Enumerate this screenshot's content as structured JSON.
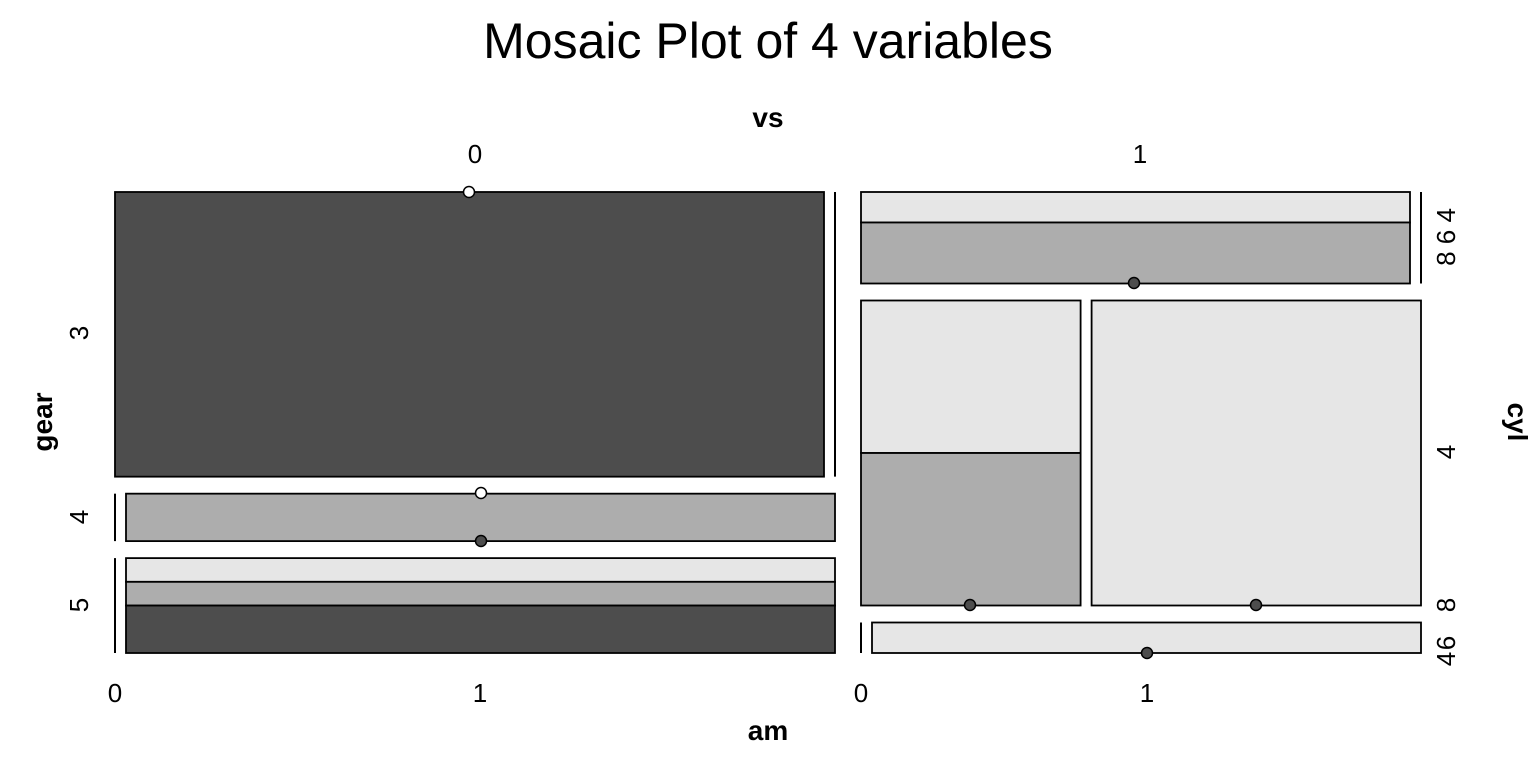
{
  "chart_data": {
    "type": "mosaic",
    "title": "Mosaic Plot of 4 variables",
    "variables": {
      "top": "vs",
      "bottom": "am",
      "left": "gear",
      "right": "cyl"
    },
    "colors": {
      "cyl_4": "#e6e6e6",
      "cyl_6": "#adadad",
      "cyl_8": "#4d4d4d",
      "zero_dot_empty": "#ffffff",
      "zero_dot_filled": "#4d4d4d"
    },
    "vs_levels": [
      {
        "vs": "0",
        "am_levels": [
          "0",
          "1"
        ],
        "gear_levels": [
          "3",
          "4",
          "5"
        ],
        "cyl_levels": []
      },
      {
        "vs": "1",
        "am_levels": [
          "0",
          "1"
        ],
        "gear_levels": [],
        "cyl_levels": [
          {
            "label": "8 6 4",
            "gear": "3"
          },
          {
            "label": "4",
            "gear": "4"
          },
          {
            "label": "8",
            "gear": "5"
          },
          {
            "label": "6",
            "gear": "5"
          },
          {
            "label": "4",
            "gear": "5"
          }
        ]
      }
    ],
    "counts": [
      {
        "vs": "0",
        "am": "0",
        "gear": "3",
        "cyl": {
          "4": 0,
          "6": 0,
          "8": 12
        }
      },
      {
        "vs": "0",
        "am": "1",
        "gear": "3",
        "cyl": {
          "4": 0,
          "6": 0,
          "8": 0
        }
      },
      {
        "vs": "0",
        "am": "0",
        "gear": "4",
        "cyl": {
          "4": 0,
          "6": 0,
          "8": 0
        }
      },
      {
        "vs": "0",
        "am": "1",
        "gear": "4",
        "cyl": {
          "4": 0,
          "6": 2,
          "8": 0
        }
      },
      {
        "vs": "0",
        "am": "0",
        "gear": "5",
        "cyl": {
          "4": 0,
          "6": 0,
          "8": 0
        }
      },
      {
        "vs": "0",
        "am": "1",
        "gear": "5",
        "cyl": {
          "4": 1,
          "6": 1,
          "8": 2
        }
      },
      {
        "vs": "1",
        "am": "0",
        "gear": "3",
        "cyl": {
          "4": 1,
          "6": 2,
          "8": 0
        }
      },
      {
        "vs": "1",
        "am": "1",
        "gear": "3",
        "cyl": {
          "4": 0,
          "6": 0,
          "8": 0
        }
      },
      {
        "vs": "1",
        "am": "0",
        "gear": "4",
        "cyl": {
          "4": 2,
          "6": 2,
          "8": 0
        }
      },
      {
        "vs": "1",
        "am": "1",
        "gear": "4",
        "cyl": {
          "4": 6,
          "6": 0,
          "8": 0
        }
      },
      {
        "vs": "1",
        "am": "0",
        "gear": "5",
        "cyl": {
          "4": 0,
          "6": 0,
          "8": 0
        }
      },
      {
        "vs": "1",
        "am": "1",
        "gear": "5",
        "cyl": {
          "4": 1,
          "6": 0,
          "8": 0
        }
      }
    ]
  }
}
